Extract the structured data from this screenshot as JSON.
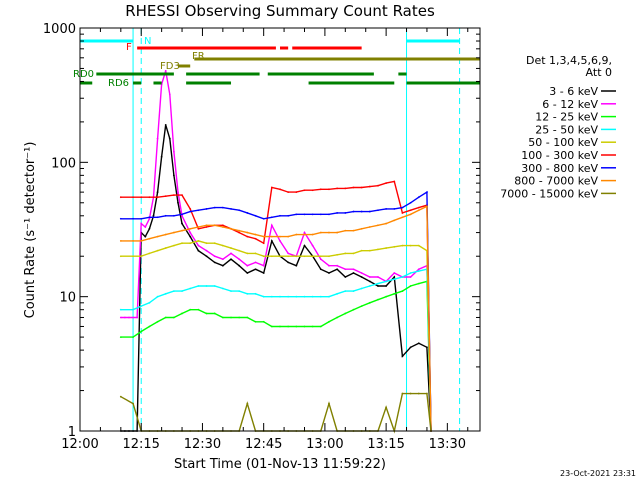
{
  "chart_data": {
    "type": "line",
    "title": "RHESSI Observing Summary Count Rates",
    "xlabel": "Start Time (01-Nov-13 11:59:22)",
    "ylabel": "Count Rate (s⁻¹ detector⁻¹)",
    "y_scale": "log",
    "ylim": [
      1,
      1000
    ],
    "xlim": [
      "12:00",
      "13:38"
    ],
    "x_ticks": [
      "12:00",
      "12:15",
      "12:30",
      "12:45",
      "13:00",
      "13:15",
      "13:30"
    ],
    "y_ticks": [
      "1",
      "10",
      "100",
      "1000"
    ],
    "legend_title": [
      "Det 1,3,4,5,6,9,",
      "Att 0"
    ],
    "legend_position": "right",
    "timestamp": "23-Oct-2021 23:31",
    "series": [
      {
        "name": "3 - 6 keV",
        "color": "#000000",
        "x": [
          "12:10",
          "12:11",
          "12:12",
          "12:13",
          "12:14",
          "12:15",
          "12:16",
          "12:17",
          "12:18",
          "12:19",
          "12:20",
          "12:21",
          "12:22",
          "12:23",
          "12:24",
          "12:25",
          "12:27",
          "12:29",
          "12:31",
          "12:33",
          "12:35",
          "12:37",
          "12:39",
          "12:41",
          "12:43",
          "12:45",
          "12:47",
          "12:49",
          "12:51",
          "12:53",
          "12:55",
          "12:57",
          "12:59",
          "13:01",
          "13:03",
          "13:05",
          "13:07",
          "13:09",
          "13:11",
          "13:13",
          "13:15",
          "13:17",
          "13:19",
          "13:21",
          "13:23",
          "13:25",
          "13:26"
        ],
        "y": [
          1,
          1,
          1,
          1,
          1,
          30,
          28,
          32,
          40,
          60,
          110,
          190,
          150,
          80,
          50,
          35,
          28,
          22,
          20,
          18,
          17,
          19,
          17,
          15,
          16,
          15,
          26,
          20,
          18,
          17,
          24,
          20,
          16,
          15,
          16,
          14,
          15,
          14,
          13,
          12,
          12,
          14,
          3.6,
          4.2,
          4.5,
          4.2,
          1
        ]
      },
      {
        "name": "6 - 12 keV",
        "color": "#ff00ff",
        "x": [
          "12:10",
          "12:11",
          "12:12",
          "12:13",
          "12:14",
          "12:15",
          "12:16",
          "12:17",
          "12:18",
          "12:19",
          "12:20",
          "12:21",
          "12:22",
          "12:23",
          "12:24",
          "12:25",
          "12:27",
          "12:29",
          "12:31",
          "12:33",
          "12:35",
          "12:37",
          "12:39",
          "12:41",
          "12:43",
          "12:45",
          "12:47",
          "12:49",
          "12:51",
          "12:53",
          "12:55",
          "12:57",
          "12:59",
          "13:01",
          "13:03",
          "13:05",
          "13:07",
          "13:09",
          "13:11",
          "13:13",
          "13:15",
          "13:17",
          "13:19",
          "13:21",
          "13:23",
          "13:25",
          "13:26"
        ],
        "y": [
          7,
          7,
          7,
          7,
          7,
          35,
          33,
          38,
          55,
          150,
          380,
          480,
          320,
          120,
          60,
          40,
          30,
          24,
          22,
          20,
          19,
          21,
          19,
          17,
          18,
          17,
          34,
          26,
          21,
          20,
          30,
          24,
          19,
          17,
          17,
          16,
          16,
          15,
          14,
          14,
          13,
          15,
          14,
          14,
          16,
          17,
          1
        ]
      },
      {
        "name": "12 - 25 keV",
        "color": "#00ff00",
        "x": [
          "12:10",
          "12:13",
          "12:15",
          "12:17",
          "12:19",
          "12:21",
          "12:23",
          "12:25",
          "12:27",
          "12:29",
          "12:31",
          "12:33",
          "12:35",
          "12:37",
          "12:39",
          "12:41",
          "12:43",
          "12:45",
          "12:47",
          "12:49",
          "12:51",
          "12:53",
          "12:55",
          "12:57",
          "12:59",
          "13:01",
          "13:03",
          "13:05",
          "13:07",
          "13:09",
          "13:11",
          "13:13",
          "13:15",
          "13:17",
          "13:19",
          "13:21",
          "13:23",
          "13:25",
          "13:26"
        ],
        "y": [
          5,
          5,
          5.5,
          6,
          6.5,
          7,
          7,
          7.5,
          8,
          8,
          7.5,
          7.5,
          7,
          7,
          7,
          7,
          6.5,
          6.5,
          6,
          6,
          6,
          6,
          6,
          6,
          6,
          6.5,
          7,
          7.5,
          8,
          8.5,
          9,
          9.5,
          10,
          10.5,
          11,
          12,
          12.5,
          13,
          1
        ]
      },
      {
        "name": "25 - 50 keV",
        "color": "#00ffff",
        "x": [
          "12:10",
          "12:13",
          "12:15",
          "12:17",
          "12:19",
          "12:21",
          "12:23",
          "12:25",
          "12:27",
          "12:29",
          "12:31",
          "12:33",
          "12:35",
          "12:37",
          "12:39",
          "12:41",
          "12:43",
          "12:45",
          "12:47",
          "12:49",
          "12:51",
          "12:53",
          "12:55",
          "12:57",
          "12:59",
          "13:01",
          "13:03",
          "13:05",
          "13:07",
          "13:09",
          "13:11",
          "13:13",
          "13:15",
          "13:17",
          "13:19",
          "13:21",
          "13:23",
          "13:25",
          "13:26"
        ],
        "y": [
          8,
          8,
          8.5,
          9,
          10,
          10.5,
          11,
          11,
          11.5,
          12,
          12,
          12,
          11.5,
          11,
          11,
          10.5,
          10.5,
          10,
          10,
          10,
          10,
          10,
          10,
          10,
          10,
          10,
          10.5,
          11,
          11,
          11.5,
          12,
          12.5,
          13,
          13.5,
          14,
          15,
          15.5,
          16,
          1
        ]
      },
      {
        "name": "50 - 100 keV",
        "color": "#cccc00",
        "x": [
          "12:10",
          "12:13",
          "12:15",
          "12:17",
          "12:19",
          "12:21",
          "12:23",
          "12:25",
          "12:27",
          "12:29",
          "12:31",
          "12:33",
          "12:35",
          "12:37",
          "12:39",
          "12:41",
          "12:43",
          "12:45",
          "12:47",
          "12:49",
          "12:51",
          "12:53",
          "12:55",
          "12:57",
          "12:59",
          "13:01",
          "13:03",
          "13:05",
          "13:07",
          "13:09",
          "13:11",
          "13:13",
          "13:15",
          "13:17",
          "13:19",
          "13:21",
          "13:23",
          "13:25",
          "13:26"
        ],
        "y": [
          20,
          20,
          20,
          21,
          22,
          23,
          24,
          25,
          25,
          26,
          25,
          25,
          24,
          23,
          22,
          21,
          21,
          20,
          20,
          20,
          20,
          20,
          20,
          20,
          20,
          20,
          20.5,
          21,
          21,
          22,
          22,
          22.5,
          23,
          23.5,
          24,
          24,
          24,
          22,
          1
        ]
      },
      {
        "name": "100 - 300 keV",
        "color": "#ff0000",
        "x": [
          "12:10",
          "12:13",
          "12:15",
          "12:17",
          "12:19",
          "12:21",
          "12:23",
          "12:25",
          "12:27",
          "12:29",
          "12:31",
          "12:33",
          "12:35",
          "12:37",
          "12:39",
          "12:41",
          "12:43",
          "12:45",
          "12:47",
          "12:49",
          "12:51",
          "12:53",
          "12:55",
          "12:57",
          "12:59",
          "13:01",
          "13:03",
          "13:05",
          "13:07",
          "13:09",
          "13:11",
          "13:13",
          "13:15",
          "13:17",
          "13:19",
          "13:21",
          "13:23",
          "13:25",
          "13:26"
        ],
        "y": [
          55,
          55,
          55,
          55,
          55,
          56,
          57,
          57,
          45,
          32,
          33,
          34,
          34,
          32,
          30,
          28,
          27,
          25,
          65,
          63,
          60,
          60,
          62,
          62,
          63,
          63,
          64,
          64,
          65,
          65,
          66,
          67,
          70,
          72,
          42,
          44,
          46,
          48,
          1
        ]
      },
      {
        "name": "300 - 800 keV",
        "color": "#0000ff",
        "x": [
          "12:10",
          "12:13",
          "12:15",
          "12:17",
          "12:19",
          "12:21",
          "12:23",
          "12:25",
          "12:27",
          "12:29",
          "12:31",
          "12:33",
          "12:35",
          "12:37",
          "12:39",
          "12:41",
          "12:43",
          "12:45",
          "12:47",
          "12:49",
          "12:51",
          "12:53",
          "12:55",
          "12:57",
          "12:59",
          "13:01",
          "13:03",
          "13:05",
          "13:07",
          "13:09",
          "13:11",
          "13:13",
          "13:15",
          "13:17",
          "13:19",
          "13:21",
          "13:23",
          "13:25",
          "13:26"
        ],
        "y": [
          38,
          38,
          38,
          39,
          39,
          40,
          40,
          41,
          43,
          44,
          45,
          46,
          46,
          45,
          44,
          42,
          40,
          38,
          39,
          40,
          40,
          41,
          41,
          41,
          41,
          41,
          42,
          42,
          43,
          43,
          43,
          44,
          45,
          45,
          46,
          50,
          55,
          60,
          1
        ]
      },
      {
        "name": "800 - 7000 keV",
        "color": "#ff8800",
        "x": [
          "12:10",
          "12:13",
          "12:15",
          "12:17",
          "12:19",
          "12:21",
          "12:23",
          "12:25",
          "12:27",
          "12:29",
          "12:31",
          "12:33",
          "12:35",
          "12:37",
          "12:39",
          "12:41",
          "12:43",
          "12:45",
          "12:47",
          "12:49",
          "12:51",
          "12:53",
          "12:55",
          "12:57",
          "12:59",
          "13:01",
          "13:03",
          "13:05",
          "13:07",
          "13:09",
          "13:11",
          "13:13",
          "13:15",
          "13:17",
          "13:19",
          "13:21",
          "13:23",
          "13:25",
          "13:26"
        ],
        "y": [
          26,
          26,
          26,
          27,
          28,
          29,
          30,
          31,
          32,
          33,
          34,
          34,
          33,
          32,
          31,
          30,
          29,
          28,
          28,
          28,
          28,
          29,
          29,
          29,
          30,
          30,
          30,
          31,
          31,
          32,
          33,
          34,
          35,
          37,
          39,
          41,
          44,
          47,
          1
        ]
      },
      {
        "name": "7000 - 15000 keV",
        "color": "#808000",
        "x": [
          "12:10",
          "12:13",
          "12:15",
          "12:17",
          "12:19",
          "12:21",
          "12:23",
          "12:25",
          "12:27",
          "12:29",
          "12:31",
          "12:33",
          "12:35",
          "12:37",
          "12:39",
          "12:41",
          "12:43",
          "12:45",
          "12:47",
          "12:49",
          "12:51",
          "12:53",
          "12:55",
          "12:57",
          "12:59",
          "13:01",
          "13:03",
          "13:05",
          "13:07",
          "13:09",
          "13:11",
          "13:13",
          "13:15",
          "13:17",
          "13:19",
          "13:21",
          "13:23",
          "13:25",
          "13:26"
        ],
        "y": [
          1.8,
          1.6,
          1,
          1,
          1,
          1,
          1,
          1,
          1,
          1,
          1,
          1,
          1,
          1,
          1,
          1.6,
          1,
          1,
          1,
          1,
          1,
          1,
          1,
          1,
          1,
          1.6,
          1,
          1,
          1,
          1,
          1,
          1,
          1.5,
          1,
          1.9,
          1.9,
          1.9,
          1.9,
          1
        ]
      }
    ],
    "flags": [
      {
        "label": "N",
        "color": "#00ffff",
        "segments": [
          [
            "12:00",
            "12:13"
          ],
          [
            "13:20",
            "13:33"
          ]
        ]
      },
      {
        "label": "F",
        "color": "#ff0000",
        "segments": [
          [
            "12:14",
            "12:48"
          ],
          [
            "12:49",
            "12:51"
          ],
          [
            "12:52",
            "13:09"
          ]
        ]
      },
      {
        "label": "FR",
        "color": "#808000",
        "segments": [
          [
            "12:28",
            "13:38"
          ]
        ]
      },
      {
        "label": "FD3",
        "color": "#808000",
        "segments": [
          [
            "12:24",
            "12:27"
          ]
        ]
      },
      {
        "label": "RD0",
        "color": "#008000",
        "segments": [
          [
            "12:04",
            "12:23"
          ],
          [
            "12:26",
            "12:44"
          ],
          [
            "12:46",
            "13:12"
          ],
          [
            "13:18",
            "13:20"
          ]
        ]
      },
      {
        "label": "RD6",
        "color": "#008000",
        "segments": [
          [
            "12:00",
            "12:03"
          ],
          [
            "12:13",
            "12:15"
          ],
          [
            "12:18",
            "12:20"
          ],
          [
            "12:26",
            "12:37"
          ],
          [
            "12:56",
            "13:17"
          ],
          [
            "13:20",
            "13:38"
          ]
        ]
      }
    ],
    "vertical_lines": [
      {
        "x": "12:13",
        "color": "#00ffff",
        "style": "solid"
      },
      {
        "x": "12:15",
        "color": "#00ffff",
        "style": "dashed"
      },
      {
        "x": "13:20",
        "color": "#00ffff",
        "style": "solid"
      },
      {
        "x": "13:33",
        "color": "#00ffff",
        "style": "dashed"
      },
      {
        "x": "12:00",
        "color": "#00ffff",
        "style": "solid"
      }
    ]
  }
}
